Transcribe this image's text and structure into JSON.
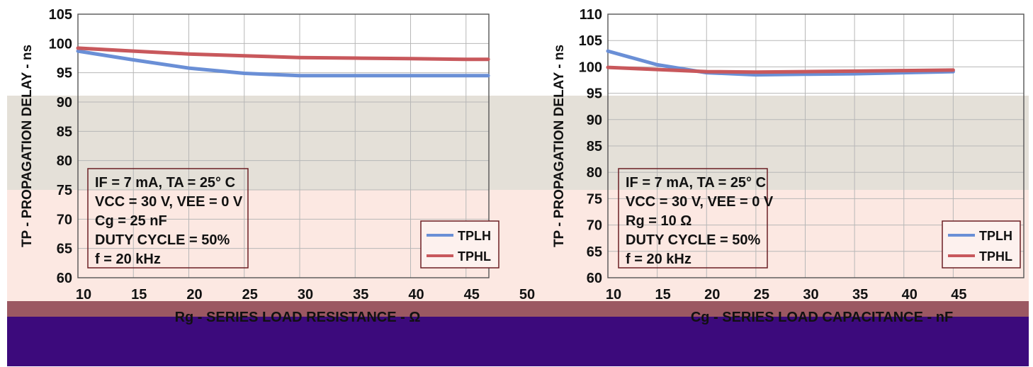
{
  "colors": {
    "tplh": "#6a8fd6",
    "tphl": "#c8585c",
    "band_gray": "#e4e0d8",
    "band_pink": "#fce8e2",
    "band_maroon": "#9b5862",
    "band_purple": "#3c0a7c"
  },
  "chart_data": [
    {
      "type": "line",
      "ylabel": "TP - PROPAGATION DELAY - ns",
      "xlabel": "Rg - SERIES LOAD RESISTANCE - Ω",
      "xlim": [
        10,
        50
      ],
      "ylim": [
        60,
        105
      ],
      "xticks": [
        "10",
        "15",
        "20",
        "25",
        "30",
        "35",
        "40",
        "45",
        "50"
      ],
      "yticks": [
        "60",
        "65",
        "70",
        "75",
        "80",
        "85",
        "90",
        "95",
        "100",
        "105"
      ],
      "grid": true,
      "legend": "bottom-right",
      "conditions": [
        "IF = 7 mA, TA = 25° C",
        "VCC = 30 V, VEE = 0 V",
        "Cg = 25 nF",
        "DUTY CYCLE = 50%",
        "f = 20 kHz"
      ],
      "series": [
        {
          "name": "TPLH",
          "color": "#6a8fd6",
          "x": [
            10,
            15,
            20,
            25,
            30,
            35,
            40,
            45,
            47
          ],
          "y": [
            98.7,
            97.2,
            95.8,
            94.9,
            94.5,
            94.5,
            94.5,
            94.5,
            94.5
          ]
        },
        {
          "name": "TPHL",
          "color": "#c8585c",
          "x": [
            10,
            15,
            20,
            25,
            30,
            35,
            40,
            45,
            47
          ],
          "y": [
            99.2,
            98.7,
            98.2,
            97.9,
            97.6,
            97.5,
            97.4,
            97.3,
            97.3
          ]
        }
      ]
    },
    {
      "type": "line",
      "ylabel": "TP - PROPAGATION DELAY - ns",
      "xlabel": "Cg - SERIES LOAD CAPACITANCE - nF",
      "xlim": [
        10,
        50
      ],
      "ylim": [
        60,
        110
      ],
      "xticks": [
        "10",
        "15",
        "20",
        "25",
        "30",
        "35",
        "40",
        "45"
      ],
      "yticks": [
        "60",
        "65",
        "70",
        "75",
        "80",
        "85",
        "90",
        "95",
        "100",
        "105",
        "110"
      ],
      "grid": true,
      "legend": "bottom-right",
      "conditions": [
        "IF = 7 mA, TA = 25° C",
        "VCC = 30 V, VEE = 0 V",
        "Rg = 10 Ω",
        "DUTY CYCLE = 50%",
        "f = 20 kHz"
      ],
      "series": [
        {
          "name": "TPLH",
          "color": "#6a8fd6",
          "x": [
            10,
            15,
            20,
            25,
            30,
            35,
            40,
            45
          ],
          "y": [
            103.0,
            100.4,
            98.9,
            98.5,
            98.6,
            98.7,
            98.9,
            99.1
          ]
        },
        {
          "name": "TPHL",
          "color": "#c8585c",
          "x": [
            10,
            15,
            20,
            25,
            30,
            35,
            40,
            45
          ],
          "y": [
            99.9,
            99.5,
            99.1,
            99.0,
            99.1,
            99.2,
            99.3,
            99.4
          ]
        }
      ]
    }
  ]
}
